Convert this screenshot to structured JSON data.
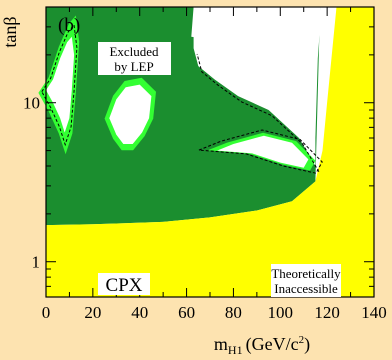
{
  "chart_data": {
    "type": "area",
    "panel_label": "(b)",
    "xlabel_main": "m",
    "xlabel_sub": "H1",
    "xlabel_unit": "(GeV/c",
    "xlabel_unit_sup": "2",
    "xlabel_unit_close": ")",
    "ylabel_main": "tan",
    "ylabel_symbol": "β",
    "xlim": [
      0,
      140
    ],
    "ylim": [
      0.6,
      40
    ],
    "y_scale": "log",
    "x_ticks": [
      0,
      20,
      40,
      60,
      80,
      100,
      120,
      140
    ],
    "x_tick_labels": [
      "0",
      "20",
      "40",
      "60",
      "80",
      "100",
      "120",
      "140"
    ],
    "y_ticks": [
      1,
      10
    ],
    "y_tick_labels": [
      "1",
      "10"
    ],
    "colors": {
      "background": "#fde3b0",
      "theoretically_inaccessible": "#ffff00",
      "excluded_dark": "#1b8e2f",
      "excluded_light": "#33ff33",
      "allowed": "#ffffff"
    },
    "annotations": {
      "excluded_lep_line1": "Excluded",
      "excluded_lep_line2": "by LEP",
      "scenario": "CPX",
      "theoretical_line1": "Theoretically",
      "theoretical_line2": "Inaccessible"
    },
    "regions": {
      "theoretical_boundary": [
        [
          0,
          1.7
        ],
        [
          20,
          1.72
        ],
        [
          50,
          1.78
        ],
        [
          70,
          1.9
        ],
        [
          90,
          2.1
        ],
        [
          105,
          2.4
        ],
        [
          115,
          3.2
        ],
        [
          118,
          5
        ],
        [
          120,
          10
        ],
        [
          122,
          20
        ],
        [
          124,
          40
        ]
      ],
      "excluded_outer_boundary": [
        [
          0,
          40
        ],
        [
          63,
          40
        ],
        [
          62,
          26
        ],
        [
          70,
          25
        ],
        [
          100,
          27
        ],
        [
          115,
          30
        ],
        [
          117,
          40
        ]
      ],
      "allowed_hole_left": [
        [
          0,
          12
        ],
        [
          3,
          14
        ],
        [
          6,
          19
        ],
        [
          9,
          24
        ],
        [
          11,
          26
        ],
        [
          12,
          20
        ],
        [
          11,
          12
        ],
        [
          10,
          8
        ],
        [
          8,
          6.5
        ],
        [
          6,
          8
        ],
        [
          3,
          10
        ]
      ],
      "allowed_hole_center": [
        [
          27,
          8
        ],
        [
          30,
          10.5
        ],
        [
          34,
          12.5
        ],
        [
          40,
          13
        ],
        [
          45,
          11
        ],
        [
          44,
          8
        ],
        [
          41,
          6.5
        ],
        [
          37,
          5.5
        ],
        [
          33,
          5.5
        ],
        [
          30,
          6.3
        ]
      ],
      "allowed_hole_right": [
        [
          73,
          5
        ],
        [
          80,
          5.5
        ],
        [
          93,
          6.2
        ],
        [
          105,
          5.6
        ],
        [
          112,
          4.4
        ],
        [
          110,
          3.9
        ],
        [
          100,
          4.2
        ],
        [
          88,
          4.8
        ]
      ],
      "allowed_region_top_right": [
        [
          63,
          40
        ],
        [
          117,
          40
        ],
        [
          117,
          30
        ],
        [
          116,
          19
        ],
        [
          115,
          6
        ],
        [
          115,
          4
        ],
        [
          108,
          6
        ],
        [
          95,
          9
        ],
        [
          82,
          11
        ],
        [
          72,
          14
        ],
        [
          65,
          17
        ],
        [
          63,
          22
        ]
      ]
    }
  }
}
